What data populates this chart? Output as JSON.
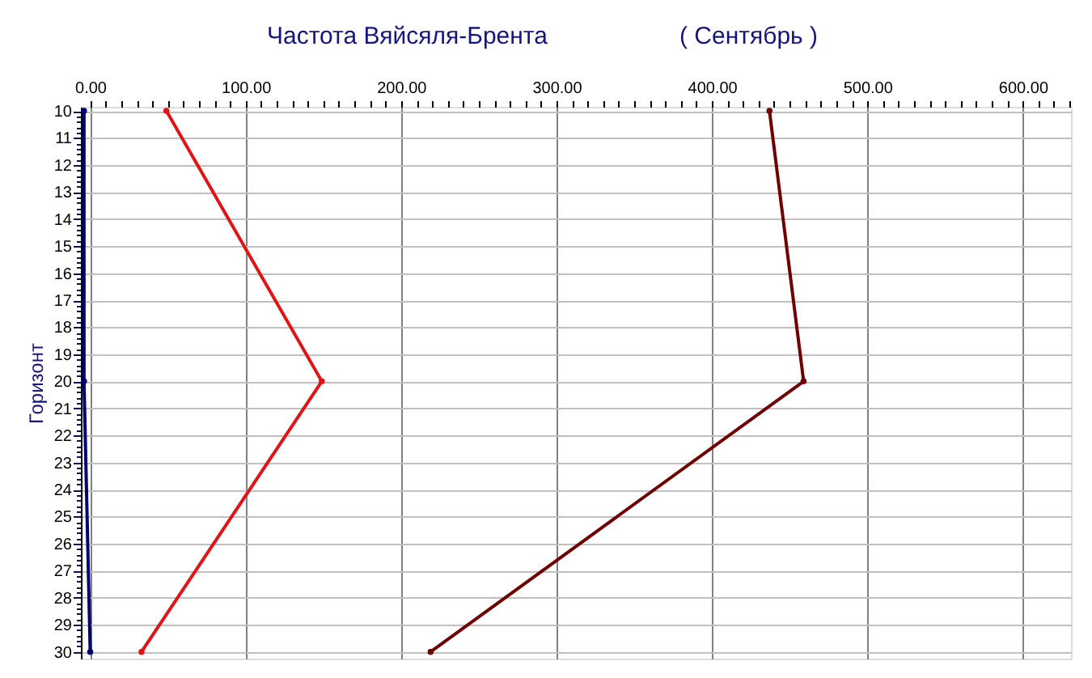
{
  "chart_data": {
    "type": "line",
    "title": "Частота Вяйсяля-Брента",
    "subtitle": "( Сентябрь )",
    "ylabel": "Горизонт",
    "series": [
      {
        "color": "#e01414",
        "x": [
          49,
          149,
          33
        ],
        "values": [
          10,
          20,
          30
        ]
      },
      {
        "color": "#6e0000",
        "x": [
          437,
          459,
          219
        ],
        "values": [
          10,
          20,
          30
        ]
      },
      {
        "color": "#000070",
        "x": [
          -4,
          -4,
          0
        ],
        "values": [
          10,
          20,
          30
        ]
      }
    ],
    "xlim": [
      -6,
      631
    ],
    "xticks": [
      {
        "value": 0,
        "label": "0.00"
      },
      {
        "value": 10,
        "label": null
      },
      {
        "value": 20,
        "label": null
      },
      {
        "value": 30,
        "label": null
      },
      {
        "value": 40,
        "label": null
      },
      {
        "value": 50,
        "label": null
      },
      {
        "value": 60,
        "label": null
      },
      {
        "value": 70,
        "label": null
      },
      {
        "value": 80,
        "label": null
      },
      {
        "value": 90,
        "label": null
      },
      {
        "value": 100,
        "label": "100.00"
      },
      {
        "value": 110,
        "label": null
      },
      {
        "value": 120,
        "label": null
      },
      {
        "value": 130,
        "label": null
      },
      {
        "value": 140,
        "label": null
      },
      {
        "value": 150,
        "label": null
      },
      {
        "value": 160,
        "label": null
      },
      {
        "value": 170,
        "label": null
      },
      {
        "value": 180,
        "label": null
      },
      {
        "value": 190,
        "label": null
      },
      {
        "value": 200,
        "label": "200.00"
      },
      {
        "value": 210,
        "label": null
      },
      {
        "value": 220,
        "label": null
      },
      {
        "value": 230,
        "label": null
      },
      {
        "value": 240,
        "label": null
      },
      {
        "value": 250,
        "label": null
      },
      {
        "value": 260,
        "label": null
      },
      {
        "value": 270,
        "label": null
      },
      {
        "value": 280,
        "label": null
      },
      {
        "value": 290,
        "label": null
      },
      {
        "value": 300,
        "label": "300.00"
      },
      {
        "value": 310,
        "label": null
      },
      {
        "value": 320,
        "label": null
      },
      {
        "value": 330,
        "label": null
      },
      {
        "value": 340,
        "label": null
      },
      {
        "value": 350,
        "label": null
      },
      {
        "value": 360,
        "label": null
      },
      {
        "value": 370,
        "label": null
      },
      {
        "value": 380,
        "label": null
      },
      {
        "value": 390,
        "label": null
      },
      {
        "value": 400,
        "label": "400.00"
      },
      {
        "value": 410,
        "label": null
      },
      {
        "value": 420,
        "label": null
      },
      {
        "value": 430,
        "label": null
      },
      {
        "value": 440,
        "label": null
      },
      {
        "value": 450,
        "label": null
      },
      {
        "value": 460,
        "label": null
      },
      {
        "value": 470,
        "label": null
      },
      {
        "value": 480,
        "label": null
      },
      {
        "value": 490,
        "label": null
      },
      {
        "value": 500,
        "label": "500.00"
      },
      {
        "value": 510,
        "label": null
      },
      {
        "value": 520,
        "label": null
      },
      {
        "value": 530,
        "label": null
      },
      {
        "value": 540,
        "label": null
      },
      {
        "value": 550,
        "label": null
      },
      {
        "value": 560,
        "label": null
      },
      {
        "value": 570,
        "label": null
      },
      {
        "value": 580,
        "label": null
      },
      {
        "value": 590,
        "label": null
      },
      {
        "value": 600,
        "label": "600.00"
      },
      {
        "value": 610,
        "label": null
      },
      {
        "value": 620,
        "label": null
      },
      {
        "value": 630,
        "label": null
      }
    ],
    "ylim": [
      30.25,
      9.85
    ],
    "yticks": [
      10,
      {
        "value": 10.2,
        "label": null
      },
      {
        "value": 10.4,
        "label": null
      },
      {
        "value": 10.6,
        "label": null
      },
      {
        "value": 10.8,
        "label": null
      },
      11,
      {
        "value": 11.2,
        "label": null
      },
      {
        "value": 11.4,
        "label": null
      },
      {
        "value": 11.6,
        "label": null
      },
      {
        "value": 11.8,
        "label": null
      },
      12,
      {
        "value": 12.2,
        "label": null
      },
      {
        "value": 12.4,
        "label": null
      },
      {
        "value": 12.6,
        "label": null
      },
      {
        "value": 12.8,
        "label": null
      },
      13,
      {
        "value": 13.2,
        "label": null
      },
      {
        "value": 13.4,
        "label": null
      },
      {
        "value": 13.6,
        "label": null
      },
      {
        "value": 13.8,
        "label": null
      },
      14,
      {
        "value": 14.2,
        "label": null
      },
      {
        "value": 14.4,
        "label": null
      },
      {
        "value": 14.6,
        "label": null
      },
      {
        "value": 14.8,
        "label": null
      },
      15,
      {
        "value": 15.2,
        "label": null
      },
      {
        "value": 15.4,
        "label": null
      },
      {
        "value": 15.6,
        "label": null
      },
      {
        "value": 15.8,
        "label": null
      },
      16,
      {
        "value": 16.2,
        "label": null
      },
      {
        "value": 16.4,
        "label": null
      },
      {
        "value": 16.6,
        "label": null
      },
      {
        "value": 16.8,
        "label": null
      },
      17,
      {
        "value": 17.2,
        "label": null
      },
      {
        "value": 17.4,
        "label": null
      },
      {
        "value": 17.6,
        "label": null
      },
      {
        "value": 17.8,
        "label": null
      },
      18,
      {
        "value": 18.2,
        "label": null
      },
      {
        "value": 18.4,
        "label": null
      },
      {
        "value": 18.6,
        "label": null
      },
      {
        "value": 18.8,
        "label": null
      },
      19,
      {
        "value": 19.2,
        "label": null
      },
      {
        "value": 19.4,
        "label": null
      },
      {
        "value": 19.6,
        "label": null
      },
      {
        "value": 19.8,
        "label": null
      },
      20,
      {
        "value": 20.2,
        "label": null
      },
      {
        "value": 20.4,
        "label": null
      },
      {
        "value": 20.6,
        "label": null
      },
      {
        "value": 20.8,
        "label": null
      },
      21,
      {
        "value": 21.2,
        "label": null
      },
      {
        "value": 21.4,
        "label": null
      },
      {
        "value": 21.6,
        "label": null
      },
      {
        "value": 21.8,
        "label": null
      },
      22,
      {
        "value": 22.2,
        "label": null
      },
      {
        "value": 22.4,
        "label": null
      },
      {
        "value": 22.6,
        "label": null
      },
      {
        "value": 22.8,
        "label": null
      },
      23,
      {
        "value": 23.2,
        "label": null
      },
      {
        "value": 23.4,
        "label": null
      },
      {
        "value": 23.6,
        "label": null
      },
      {
        "value": 23.8,
        "label": null
      },
      24,
      {
        "value": 24.2,
        "label": null
      },
      {
        "value": 24.4,
        "label": null
      },
      {
        "value": 24.6,
        "label": null
      },
      {
        "value": 24.8,
        "label": null
      },
      25,
      {
        "value": 25.2,
        "label": null
      },
      {
        "value": 25.4,
        "label": null
      },
      {
        "value": 25.6,
        "label": null
      },
      {
        "value": 25.8,
        "label": null
      },
      26,
      {
        "value": 26.2,
        "label": null
      },
      {
        "value": 26.4,
        "label": null
      },
      {
        "value": 26.6,
        "label": null
      },
      {
        "value": 26.8,
        "label": null
      },
      27,
      {
        "value": 27.2,
        "label": null
      },
      {
        "value": 27.4,
        "label": null
      },
      {
        "value": 27.6,
        "label": null
      },
      {
        "value": 27.8,
        "label": null
      },
      28,
      {
        "value": 28.2,
        "label": null
      },
      {
        "value": 28.4,
        "label": null
      },
      {
        "value": 28.6,
        "label": null
      },
      {
        "value": 28.8,
        "label": null
      },
      29,
      {
        "value": 29.2,
        "label": null
      },
      {
        "value": 29.4,
        "label": null
      },
      {
        "value": 29.6,
        "label": null
      },
      {
        "value": 29.8,
        "label": null
      },
      30
    ],
    "grid": true,
    "marker": "circle",
    "line_style": "solid"
  }
}
